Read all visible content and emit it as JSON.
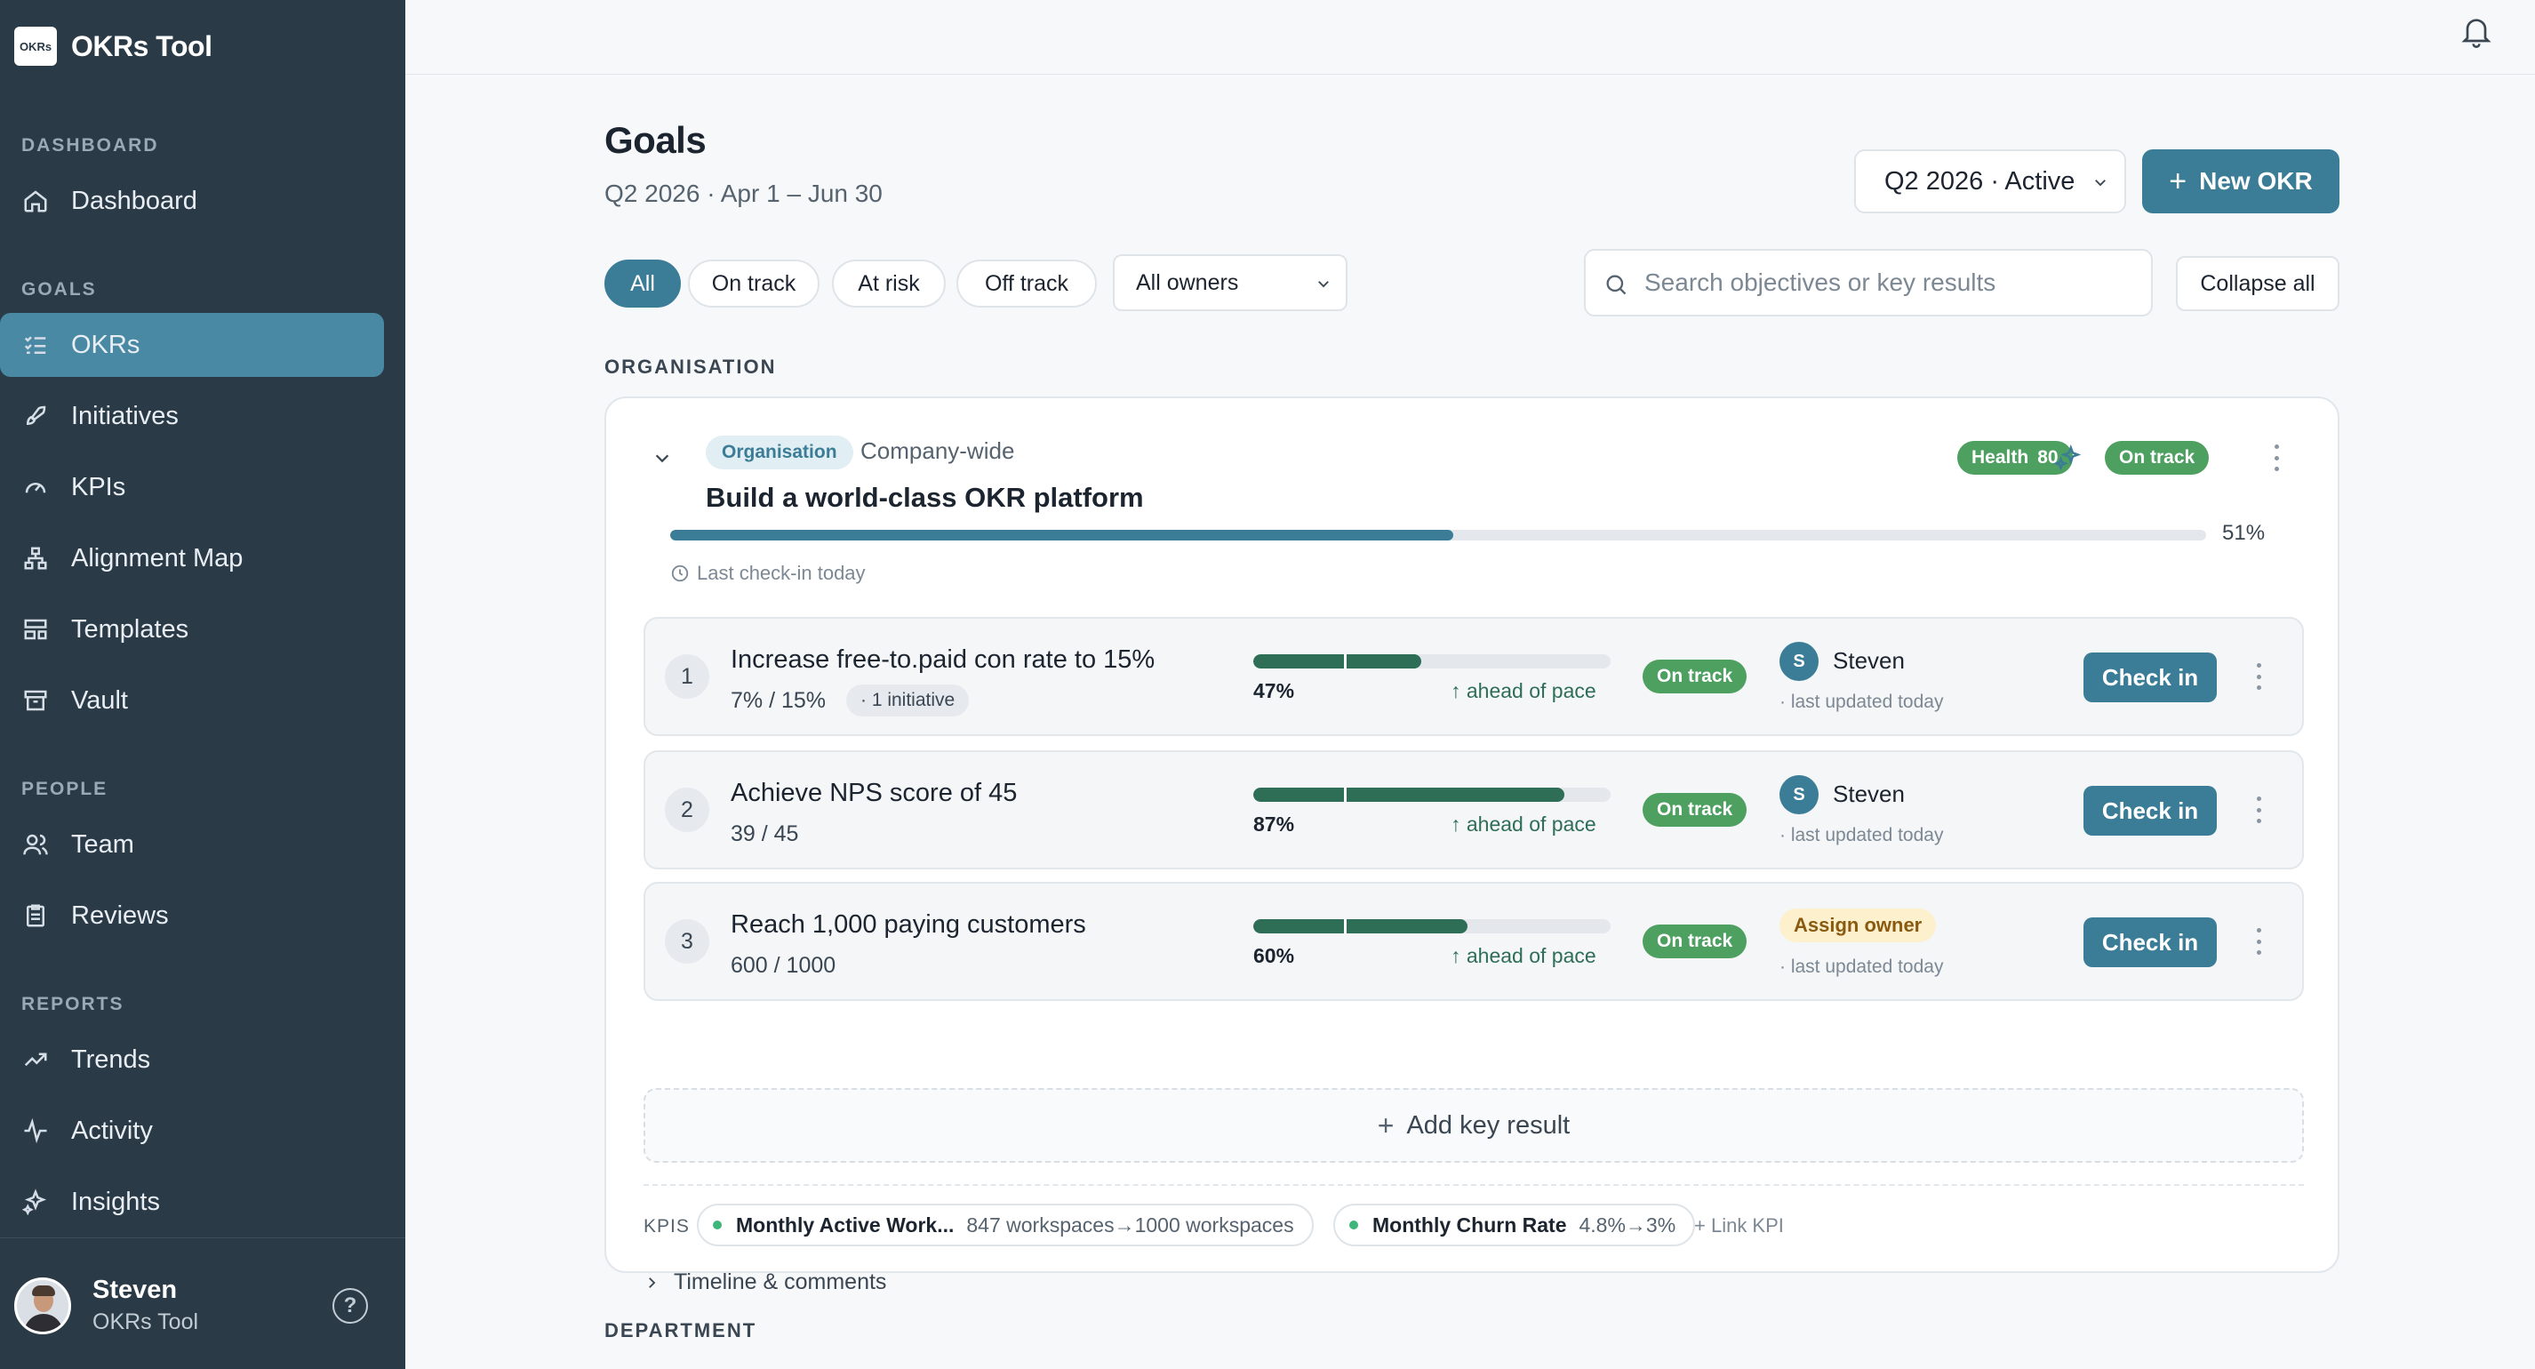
{
  "app": {
    "name": "OKRs Tool",
    "logo_text": "OKRs"
  },
  "sidebar": {
    "sections": [
      {
        "label": "DASHBOARD"
      },
      {
        "label": "GOALS"
      },
      {
        "label": "PEOPLE"
      },
      {
        "label": "REPORTS"
      }
    ],
    "items": [
      {
        "label": "Dashboard",
        "icon": "home-icon"
      },
      {
        "label": "OKRs",
        "icon": "list-check-icon",
        "active": true
      },
      {
        "label": "Initiatives",
        "icon": "rocket-icon"
      },
      {
        "label": "KPIs",
        "icon": "gauge-icon"
      },
      {
        "label": "Alignment Map",
        "icon": "hierarchy-icon"
      },
      {
        "label": "Templates",
        "icon": "layout-icon"
      },
      {
        "label": "Vault",
        "icon": "archive-icon"
      },
      {
        "label": "Team",
        "icon": "users-icon"
      },
      {
        "label": "Reviews",
        "icon": "clipboard-icon"
      },
      {
        "label": "Trends",
        "icon": "trend-icon"
      },
      {
        "label": "Activity",
        "icon": "activity-icon"
      },
      {
        "label": "Insights",
        "icon": "sparkles-icon"
      }
    ],
    "user": {
      "name": "Steven",
      "org": "OKRs Tool"
    },
    "help_label": "?"
  },
  "header": {
    "title": "Goals",
    "subtitle": "Q2 2026 · Apr 1 – Jun 30",
    "quarter_select": "Q2 2026 · Active",
    "new_okr_label": "New OKR",
    "plus": "+"
  },
  "filters": {
    "pills": [
      "All",
      "On track",
      "At risk",
      "Off track"
    ],
    "active_pill": "All",
    "owners": "All owners",
    "search_placeholder": "Search objectives or key results",
    "collapse_label": "Collapse all"
  },
  "sections": {
    "organisation": "ORGANISATION",
    "department": "DEPARTMENT"
  },
  "objective": {
    "tag": "Organisation",
    "scope": "Company-wide",
    "title": "Build a world-class OKR platform",
    "health_label": "Health",
    "health_value": "80",
    "status": "On track",
    "progress": 51,
    "progress_label": "51%",
    "last_checkin": "Last check-in today",
    "key_results": [
      {
        "num": "1",
        "title": "Increase free-to.paid con rate to 15%",
        "value": "7% / 15%",
        "initiative": "· 1 initiative",
        "progress": 47,
        "pct_label": "47%",
        "pace": "↑ ahead of pace",
        "status": "On track",
        "owner_initial": "S",
        "owner_name": "Steven",
        "updated": "· last updated today",
        "checkin_label": "Check in"
      },
      {
        "num": "2",
        "title": "Achieve NPS score of 45",
        "value": "39 / 45",
        "progress": 87,
        "pct_label": "87%",
        "pace": "↑ ahead of pace",
        "status": "On track",
        "owner_initial": "S",
        "owner_name": "Steven",
        "updated": "· last updated today",
        "checkin_label": "Check in"
      },
      {
        "num": "3",
        "title": "Reach 1,000 paying customers",
        "value": "600 / 1000",
        "progress": 60,
        "pct_label": "60%",
        "pace": "↑ ahead of pace",
        "status": "On track",
        "assign_owner": "Assign owner",
        "updated": "· last updated today",
        "checkin_label": "Check in"
      }
    ],
    "add_kr_label": "Add key result",
    "kpis_label": "KPIS",
    "kpis": [
      {
        "name": "Monthly Active Work...",
        "value": "847 workspaces→1000 workspaces"
      },
      {
        "name": "Monthly Churn Rate",
        "value": "4.8%→3%"
      }
    ],
    "link_kpi_label": "+ Link KPI",
    "timeline_label": "Timeline & comments"
  },
  "colors": {
    "sidebar_bg": "#2b3a47",
    "accent": "#3b7d97",
    "on_track": "#4ea060",
    "kr_progress": "#2f6e56",
    "assign_bg": "#fdf0cc"
  }
}
